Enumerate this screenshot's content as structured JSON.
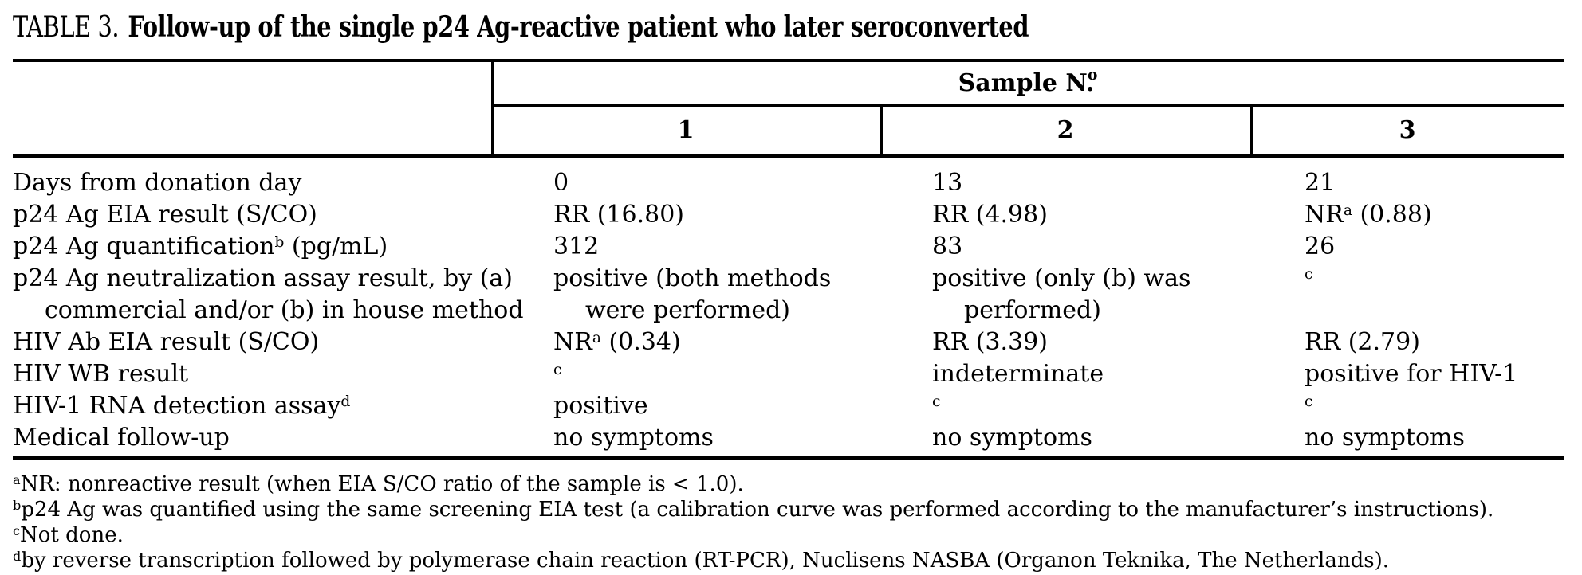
{
  "colors": {
    "text": "#000000",
    "background": "#ffffff",
    "rule": "#000000"
  },
  "caption": {
    "label": "TABLE 3.",
    "text": "Follow-up of the single p24 Ag-reactive patient who later seroconverted"
  },
  "table": {
    "group_header": "Sample N.^{o}",
    "column_headers": [
      "1",
      "2",
      "3"
    ],
    "rows": [
      {
        "label": "Days from donation day",
        "cells": [
          "0",
          "13",
          "21"
        ]
      },
      {
        "label": "p24 Ag EIA result (S/CO)",
        "cells": [
          "RR (16.80)",
          "RR (4.98)",
          "NR^{a} (0.88)"
        ]
      },
      {
        "label": "p24 Ag quantification^{b} (pg/mL)",
        "cells": [
          "312",
          "83",
          "26"
        ]
      },
      {
        "label": "p24 Ag neutralization assay result, by (a)\ncommercial and/or (b) in house method",
        "cells": [
          "positive (both methods\nwere performed)",
          "positive (only (b) was\nperformed)",
          "^{c}"
        ]
      },
      {
        "label": "HIV Ab EIA result (S/CO)",
        "cells": [
          "NR^{a} (0.34)",
          "RR (3.39)",
          "RR (2.79)"
        ]
      },
      {
        "label": "HIV WB result",
        "cells": [
          "^{c}",
          "indeterminate",
          "positive for HIV-1"
        ]
      },
      {
        "label": "HIV-1 RNA detection assay^{d}",
        "cells": [
          "positive",
          "^{c}",
          "^{c}"
        ]
      },
      {
        "label": "Medical follow-up",
        "cells": [
          "no symptoms",
          "no symptoms",
          "no symptoms"
        ]
      }
    ]
  },
  "footnotes": [
    {
      "marker": "a",
      "text": "NR: nonreactive result (when EIA S/CO ratio of the sample is < 1.0)."
    },
    {
      "marker": "b",
      "text": "p24 Ag was quantified using the same screening EIA test (a calibration curve was performed according to the manufacturer’s instructions)."
    },
    {
      "marker": "c",
      "text": "Not done."
    },
    {
      "marker": "d",
      "text": "by reverse transcription followed by polymerase chain reaction (RT-PCR), Nuclisens NASBA (Organon Teknika, The Netherlands)."
    }
  ]
}
